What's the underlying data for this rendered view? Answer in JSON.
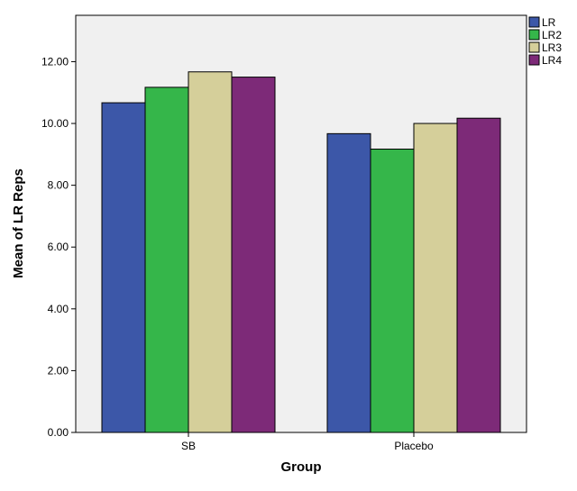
{
  "chart_data": {
    "type": "bar",
    "categories": [
      "SB",
      "Placebo"
    ],
    "series": [
      {
        "name": "LR",
        "color": "#3c57a8",
        "values": [
          10.67,
          9.67
        ]
      },
      {
        "name": "LR2",
        "color": "#35b64a",
        "values": [
          11.17,
          9.17
        ]
      },
      {
        "name": "LR3",
        "color": "#d5cf9a",
        "values": [
          11.67,
          10.0
        ]
      },
      {
        "name": "LR4",
        "color": "#7d2a78",
        "values": [
          11.5,
          10.17
        ]
      }
    ],
    "xlabel": "Group",
    "ylabel": "Mean of LR Reps",
    "ylim": [
      0,
      13.5
    ],
    "yticks": [
      0,
      2,
      4,
      6,
      8,
      10,
      12
    ],
    "ytick_labels": [
      "0.00",
      "2.00",
      "4.00",
      "6.00",
      "8.00",
      "10.00",
      "12.00"
    ],
    "plot_background": "#f0f0f0",
    "grid": false,
    "legend_position": "right"
  }
}
